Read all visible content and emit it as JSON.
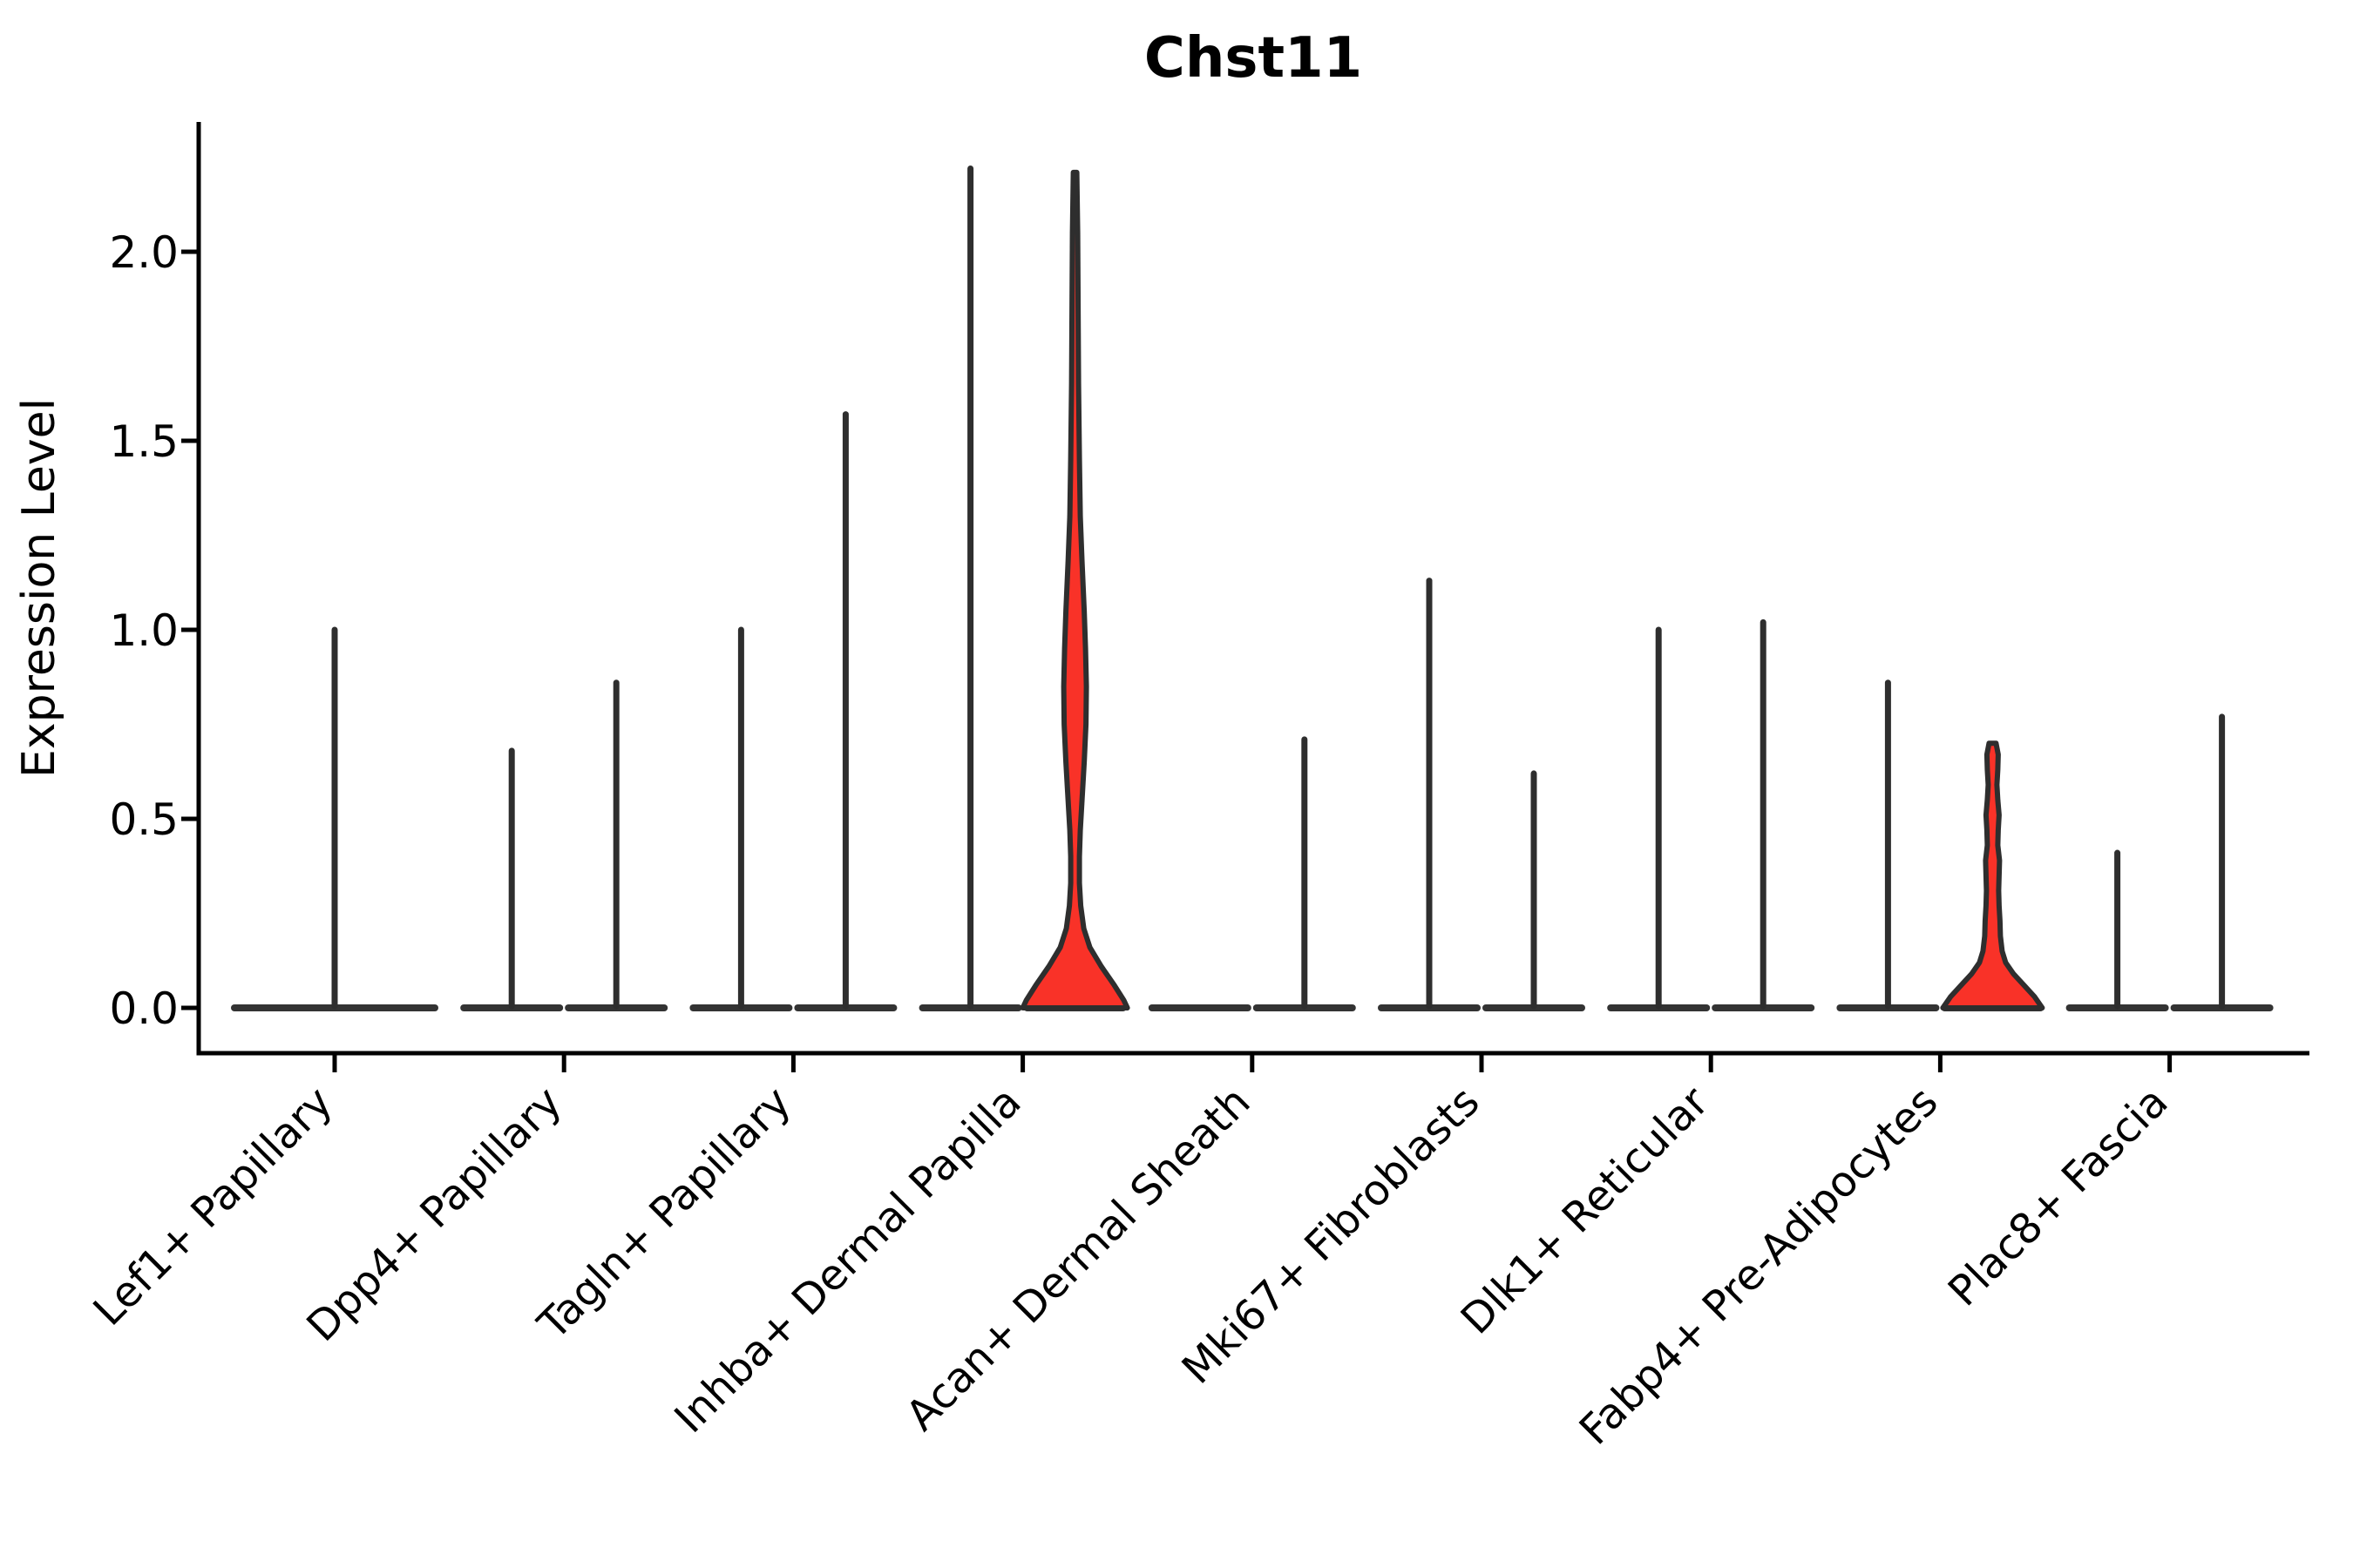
{
  "chart_data": {
    "type": "violin",
    "title": "Chst11",
    "ylabel": "Expression Level",
    "ytick_labels": [
      "0.0",
      "0.5",
      "1.0",
      "1.5",
      "2.0"
    ],
    "ytick_values": [
      0,
      0.5,
      1.0,
      1.5,
      2.0
    ],
    "ylim": [
      -0.12,
      2.34
    ],
    "grid": false,
    "legend": false,
    "xlabel": "",
    "categories": [
      "Lef1+ Papillary",
      "Dpp4+ Papillary",
      "Tagln+ Papillary",
      "Inhba+ Dermal Papilla",
      "Acan+ Dermal Sheath",
      "Mki67+ Fibroblasts",
      "Dlk1+ Reticular",
      "Fabp4+ Pre-Adipocytes",
      "Plac8+ Fascia"
    ],
    "colors": {
      "fill": "#F93228",
      "outline": "#2E2E2E",
      "baseline": "#333333",
      "axis": "#000000",
      "text": "#000000"
    },
    "groups": [
      {
        "category": "Lef1+ Papillary",
        "violins": [
          {
            "span": "full",
            "shape": "needle",
            "max": 1.0
          }
        ]
      },
      {
        "category": "Dpp4+ Papillary",
        "violins": [
          {
            "span": "left",
            "shape": "needle",
            "max": 0.68
          },
          {
            "span": "right",
            "shape": "needle",
            "max": 0.86
          }
        ]
      },
      {
        "category": "Tagln+ Papillary",
        "violins": [
          {
            "span": "left",
            "shape": "needle",
            "max": 1.0
          },
          {
            "span": "right",
            "shape": "needle",
            "max": 1.57
          }
        ]
      },
      {
        "category": "Inhba+ Dermal Papilla",
        "violins": [
          {
            "span": "left",
            "shape": "needle",
            "max": 2.22
          },
          {
            "span": "right",
            "shape": "density",
            "max": 2.21,
            "profile": [
              [
                2.21,
                2
              ],
              [
                2.05,
                3
              ],
              [
                1.85,
                3.5
              ],
              [
                1.65,
                4
              ],
              [
                1.45,
                5
              ],
              [
                1.3,
                6
              ],
              [
                1.18,
                8
              ],
              [
                1.05,
                10.5
              ],
              [
                0.95,
                12
              ],
              [
                0.85,
                13
              ],
              [
                0.75,
                12.5
              ],
              [
                0.65,
                10.5
              ],
              [
                0.55,
                8
              ],
              [
                0.47,
                6
              ],
              [
                0.4,
                5
              ],
              [
                0.33,
                5
              ],
              [
                0.27,
                6.5
              ],
              [
                0.21,
                10
              ],
              [
                0.16,
                17
              ],
              [
                0.11,
                30
              ],
              [
                0.06,
                45
              ],
              [
                0.02,
                56
              ],
              [
                0,
                60
              ]
            ]
          }
        ]
      },
      {
        "category": "Acan+ Dermal Sheath",
        "violins": [
          {
            "span": "left",
            "shape": "flat",
            "max": 0
          },
          {
            "span": "right",
            "shape": "needle",
            "max": 0.71
          }
        ]
      },
      {
        "category": "Mki67+ Fibroblasts",
        "violins": [
          {
            "span": "left",
            "shape": "needle",
            "max": 1.13
          },
          {
            "span": "right",
            "shape": "needle",
            "max": 0.62
          }
        ]
      },
      {
        "category": "Dlk1+ Reticular",
        "violins": [
          {
            "span": "left",
            "shape": "needle",
            "max": 1.0
          },
          {
            "span": "right",
            "shape": "needle",
            "max": 1.02
          }
        ]
      },
      {
        "category": "Fabp4+ Pre-Adipocytes",
        "violins": [
          {
            "span": "left",
            "shape": "needle",
            "max": 0.86
          },
          {
            "span": "right",
            "shape": "density",
            "max": 0.7,
            "profile": [
              [
                0.7,
                4
              ],
              [
                0.67,
                6.5
              ],
              [
                0.63,
                6
              ],
              [
                0.59,
                5
              ],
              [
                0.55,
                6
              ],
              [
                0.51,
                7.5
              ],
              [
                0.47,
                6.5
              ],
              [
                0.43,
                6
              ],
              [
                0.39,
                8
              ],
              [
                0.35,
                7.5
              ],
              [
                0.31,
                7
              ],
              [
                0.27,
                7.5
              ],
              [
                0.23,
                8.5
              ],
              [
                0.19,
                9
              ],
              [
                0.15,
                11
              ],
              [
                0.12,
                15
              ],
              [
                0.09,
                24
              ],
              [
                0.06,
                36
              ],
              [
                0.03,
                48
              ],
              [
                0,
                57
              ]
            ]
          }
        ]
      },
      {
        "category": "Plac8+ Fascia",
        "violins": [
          {
            "span": "left",
            "shape": "needle",
            "max": 0.41
          },
          {
            "span": "right",
            "shape": "needle",
            "max": 0.77
          }
        ]
      }
    ]
  }
}
